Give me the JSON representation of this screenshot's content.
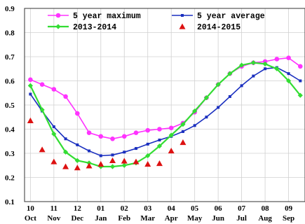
{
  "chart_data": {
    "type": "line",
    "ylim": [
      0.1,
      0.9
    ],
    "yticks": [
      "0.1",
      "0.2",
      "0.3",
      "0.4",
      "0.5",
      "0.6",
      "0.7",
      "0.8",
      "0.9"
    ],
    "xticks_num": [
      "10",
      "11",
      "12",
      "01",
      "02",
      "03",
      "04",
      "05",
      "06",
      "07",
      "08",
      "09"
    ],
    "xticks_mon": [
      "Oct",
      "Nov",
      "Dec",
      "Jan",
      "Feb",
      "Mar",
      "Apr",
      "May",
      "Jun",
      "Jul",
      "Aug",
      "Sep"
    ],
    "grid": true,
    "legend_position": "top",
    "series": [
      {
        "name": "5 year maximum",
        "style": "line-circle",
        "color": "#ff33ff",
        "x": [
          10.0,
          10.5,
          11.0,
          11.5,
          12.0,
          12.5,
          13.0,
          13.5,
          14.0,
          14.5,
          15.0,
          15.5,
          16.0,
          16.5,
          17.0,
          17.5,
          18.0,
          18.5,
          19.0,
          19.5,
          20.0,
          20.5,
          21.0,
          21.5
        ],
        "values": [
          0.605,
          0.585,
          0.565,
          0.535,
          0.465,
          0.385,
          0.37,
          0.36,
          0.37,
          0.385,
          0.395,
          0.4,
          0.405,
          0.425,
          0.47,
          0.53,
          0.585,
          0.63,
          0.66,
          0.675,
          0.68,
          0.69,
          0.695,
          0.66
        ]
      },
      {
        "name": "5 year average",
        "style": "line-square",
        "color": "#1a2fbf",
        "x": [
          10.0,
          10.5,
          11.0,
          11.5,
          12.0,
          12.5,
          13.0,
          13.5,
          14.0,
          14.5,
          15.0,
          15.5,
          16.0,
          16.5,
          17.0,
          17.5,
          18.0,
          18.5,
          19.0,
          19.5,
          20.0,
          20.5,
          21.0,
          21.5
        ],
        "values": [
          0.545,
          0.475,
          0.41,
          0.36,
          0.335,
          0.31,
          0.29,
          0.293,
          0.305,
          0.32,
          0.338,
          0.355,
          0.37,
          0.39,
          0.415,
          0.45,
          0.49,
          0.535,
          0.58,
          0.62,
          0.65,
          0.655,
          0.63,
          0.6
        ]
      },
      {
        "name": "2013-2014",
        "style": "line-diamond",
        "color": "#33dd33",
        "x": [
          10.0,
          10.5,
          11.0,
          11.5,
          12.0,
          12.5,
          13.0,
          13.5,
          14.0,
          14.5,
          15.0,
          15.5,
          16.0,
          16.5,
          17.0,
          17.5,
          18.0,
          18.5,
          19.0,
          19.5,
          20.0,
          20.5,
          21.0,
          21.5
        ],
        "values": [
          0.58,
          0.48,
          0.38,
          0.305,
          0.27,
          0.26,
          0.245,
          0.245,
          0.25,
          0.26,
          0.29,
          0.33,
          0.375,
          0.42,
          0.475,
          0.53,
          0.585,
          0.63,
          0.665,
          0.675,
          0.67,
          0.65,
          0.6,
          0.54
        ]
      },
      {
        "name": "2014-2015",
        "style": "triangle",
        "color": "#dd1111",
        "x": [
          10.0,
          10.5,
          11.0,
          11.5,
          12.0,
          12.5,
          13.0,
          13.5,
          14.0,
          14.5,
          15.0,
          15.5,
          16.0,
          16.5
        ],
        "values": [
          0.435,
          0.315,
          0.265,
          0.245,
          0.24,
          0.248,
          0.255,
          0.27,
          0.268,
          0.265,
          0.255,
          0.258,
          0.31,
          0.345
        ]
      }
    ]
  }
}
